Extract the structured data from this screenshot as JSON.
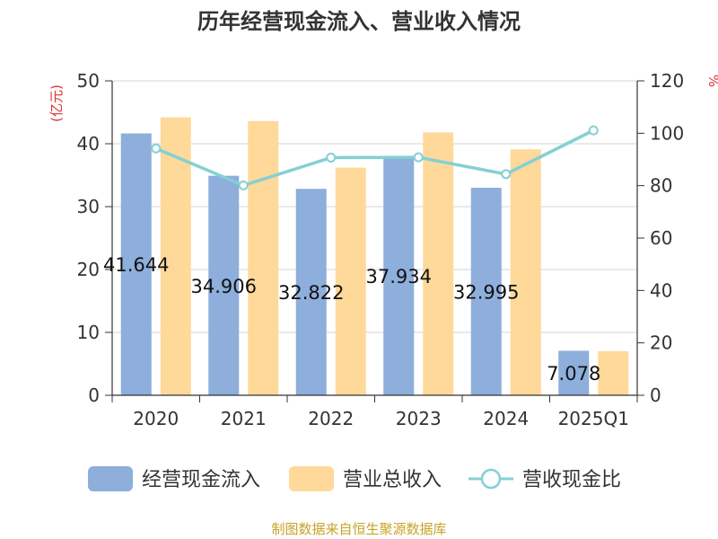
{
  "chart_data": {
    "type": "bar",
    "title": "历年经营现金流入、营业收入情况",
    "categories": [
      "2020",
      "2021",
      "2022",
      "2023",
      "2024",
      "2025Q1"
    ],
    "y_left": {
      "label": "(亿元)",
      "ylim": [
        0,
        50
      ],
      "ticks": [
        0,
        10,
        20,
        30,
        40,
        50
      ]
    },
    "y_right": {
      "label": "%",
      "ylim": [
        0,
        120
      ],
      "ticks": [
        0,
        20,
        40,
        60,
        80,
        100,
        120
      ]
    },
    "grid": true,
    "legend_position": "bottom",
    "series": [
      {
        "name": "经营现金流入",
        "type": "bar",
        "axis": "left",
        "color": "#8eaedb",
        "values": [
          41.644,
          34.906,
          32.822,
          37.934,
          32.995,
          7.078
        ],
        "data_labels": [
          "41.644",
          "34.906",
          "32.822",
          "37.934",
          "32.995",
          "7.078"
        ]
      },
      {
        "name": "营业总收入",
        "type": "bar",
        "axis": "left",
        "color": "#ffd99a",
        "values": [
          44.2,
          43.6,
          36.2,
          41.8,
          39.1,
          7.0
        ]
      },
      {
        "name": "营收现金比",
        "type": "line",
        "axis": "right",
        "color": "#84d0d4",
        "values": [
          94.2,
          80.1,
          90.7,
          90.8,
          84.4,
          101.1
        ]
      }
    ],
    "source_note": "制图数据来自恒生聚源数据库"
  }
}
